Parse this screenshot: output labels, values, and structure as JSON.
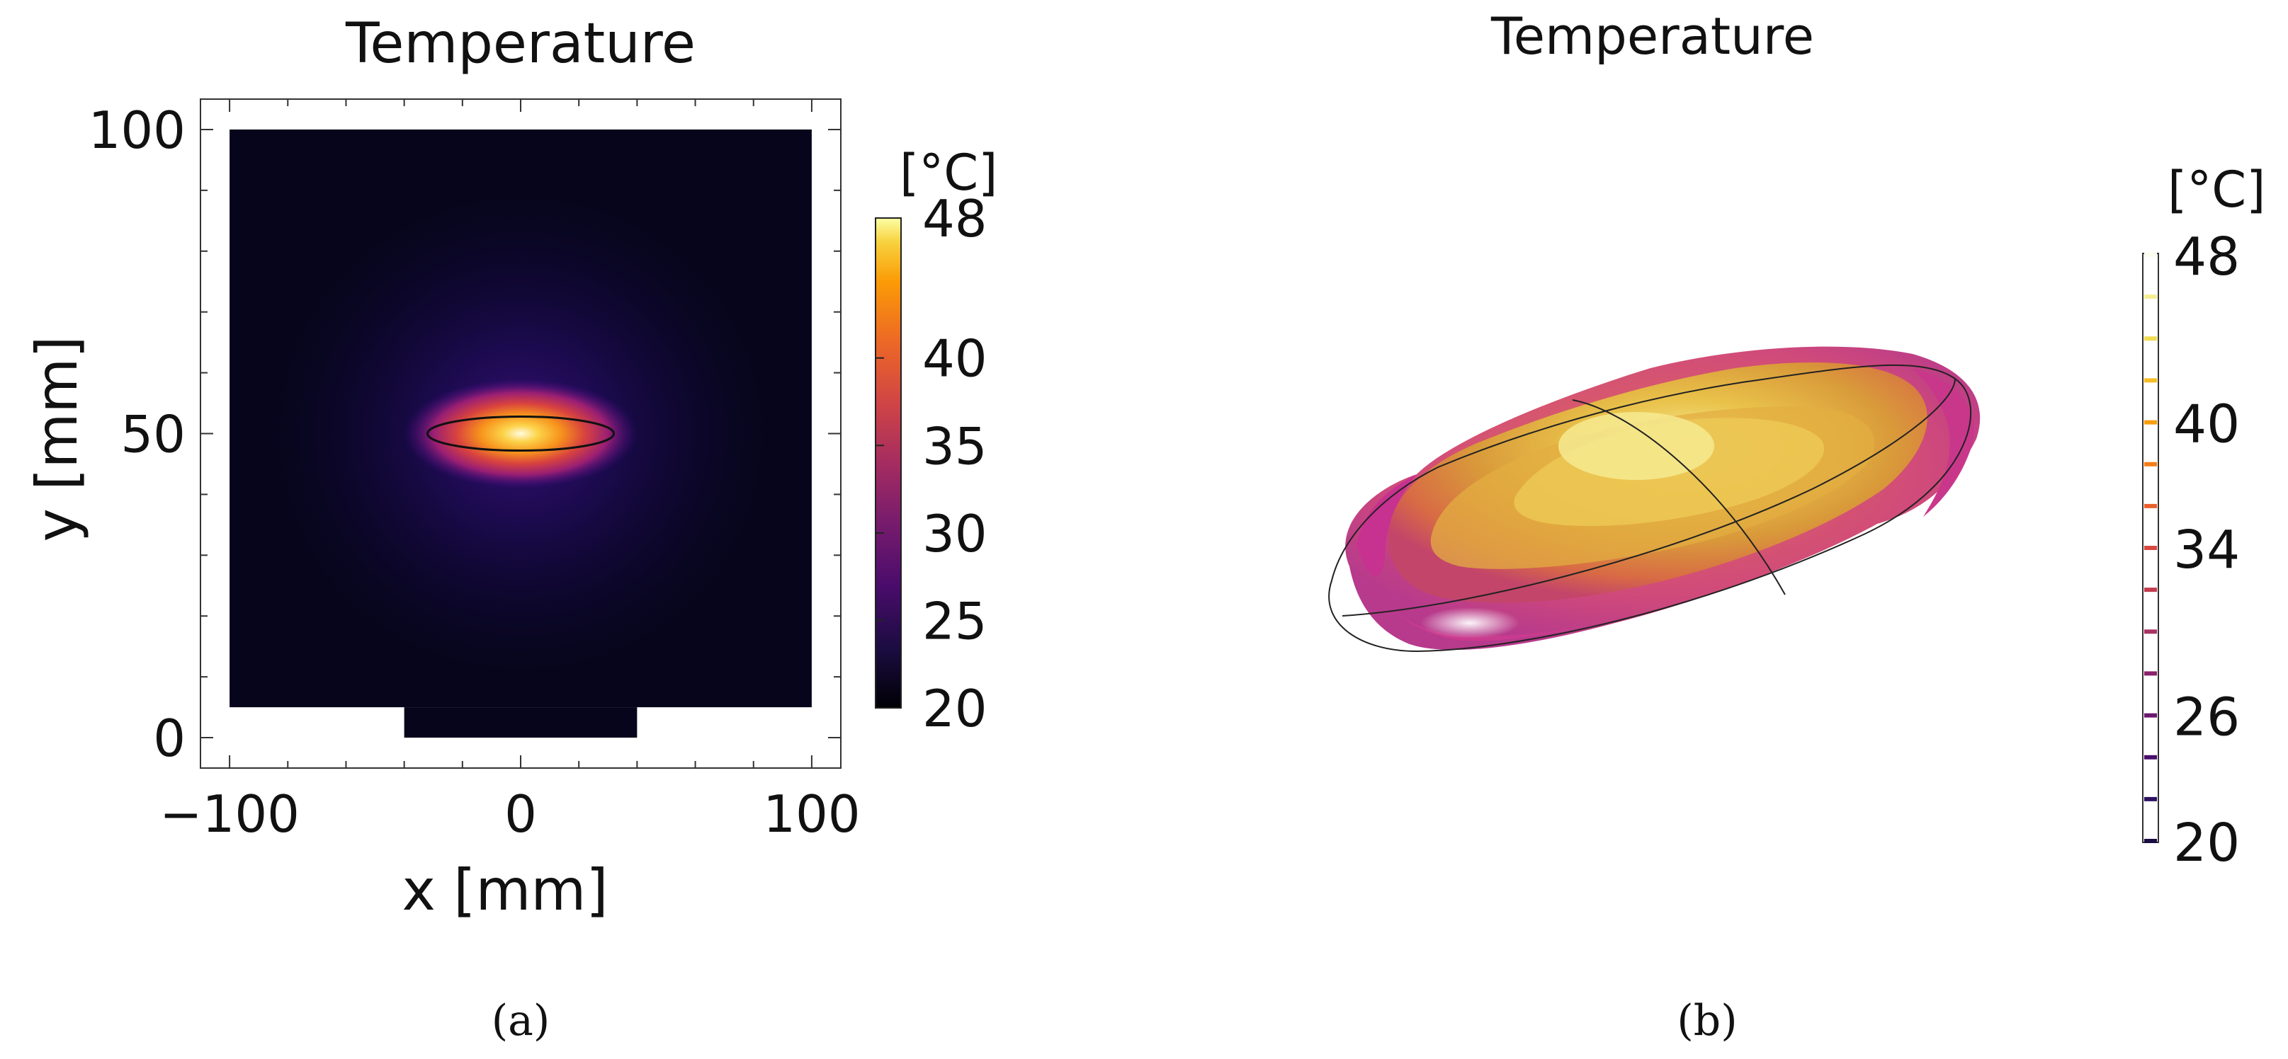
{
  "chart_data": [
    {
      "type": "heatmap",
      "panel_label": "(a)",
      "title": "Temperature",
      "xlabel": "x [mm]",
      "ylabel": "y [mm]",
      "xlim": [
        -110,
        110
      ],
      "ylim": [
        -5,
        105
      ],
      "x_ticks": [
        -100,
        0,
        100
      ],
      "x_tick_labels": [
        "−100",
        "0",
        "100"
      ],
      "y_ticks": [
        0,
        50,
        100
      ],
      "y_tick_labels": [
        "0",
        "50",
        "100"
      ],
      "domain": {
        "x": [
          -100,
          100
        ],
        "y": [
          5,
          100
        ]
      },
      "base_block": {
        "x": [
          -40,
          40
        ],
        "y": [
          0,
          5
        ]
      },
      "ellipse_outline": {
        "cx": 0,
        "cy": 50,
        "rx": 32,
        "ry": 2.8
      },
      "hotspot": {
        "x": 0,
        "y": 50,
        "max_temp": 48
      },
      "colorbar": {
        "unit": "[°C]",
        "min": 20,
        "max": 48,
        "ticks": [
          20,
          25,
          30,
          35,
          40,
          48
        ],
        "tick_labels": [
          "20",
          "25",
          "30",
          "35",
          "40",
          "48"
        ],
        "colormap": "inferno"
      },
      "grid": false
    },
    {
      "type": "3d isosurface",
      "panel_label": "(b)",
      "title": "Temperature",
      "colorbar": {
        "unit": "[°C]",
        "min": 20,
        "max": 48,
        "ticks": [
          20,
          26,
          34,
          40,
          48
        ],
        "tick_labels": [
          "20",
          "26",
          "34",
          "40",
          "48"
        ],
        "levels": [
          20,
          22,
          24,
          26,
          28,
          30,
          32,
          34,
          36,
          38,
          40,
          42,
          44,
          46,
          48
        ],
        "level_colors": [
          "#1b0c41",
          "#2c1160",
          "#4a0c6b",
          "#6a176e",
          "#8a226a",
          "#a83263",
          "#c43c4e",
          "#d8483f",
          "#ea5f2a",
          "#f57d15",
          "#f89d0c",
          "#f6be25",
          "#f1dc52",
          "#f5ee91",
          "#fcfdf0"
        ]
      },
      "grid": false
    }
  ]
}
